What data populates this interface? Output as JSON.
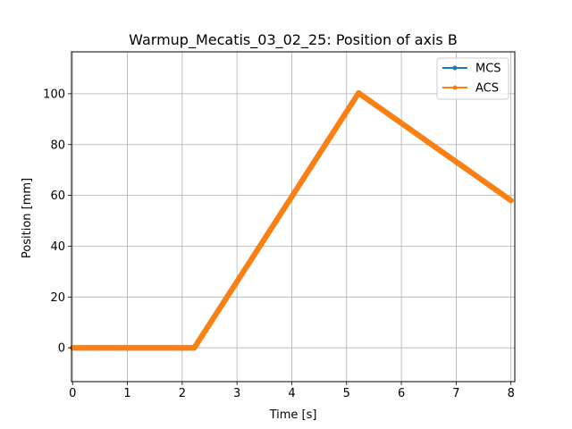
{
  "colors": {
    "mcs": "#1f77b4",
    "acs": "#ff7f0e",
    "grid": "#b0b0b0",
    "axes": "#000000",
    "background": "#ffffff"
  },
  "chart_data": {
    "type": "line",
    "title": "Warmup_Mecatis_03_02_25: Position of axis B",
    "xlabel": "Time [s]",
    "ylabel": "Position [mm]",
    "xlim": [
      -0.02,
      8.07
    ],
    "ylim": [
      -13.3,
      116.5
    ],
    "x_ticks": [
      0,
      1,
      2,
      3,
      4,
      5,
      6,
      7,
      8
    ],
    "y_ticks": [
      0,
      20,
      40,
      60,
      80,
      100
    ],
    "x_tick_labels": [
      "0",
      "1",
      "2",
      "3",
      "4",
      "5",
      "6",
      "7",
      "8"
    ],
    "y_tick_labels": [
      "0",
      "20",
      "40",
      "60",
      "80",
      "100"
    ],
    "grid": true,
    "legend_position": "top-right",
    "marker": "circle",
    "series": [
      {
        "name": "MCS",
        "x": [
          0,
          2.22,
          5.22,
          8.0
        ],
        "y": [
          0,
          0,
          100.3,
          58.0
        ]
      },
      {
        "name": "ACS",
        "x": [
          0,
          2.22,
          5.22,
          8.0
        ],
        "y": [
          0,
          0,
          100.3,
          58.0
        ]
      }
    ]
  }
}
